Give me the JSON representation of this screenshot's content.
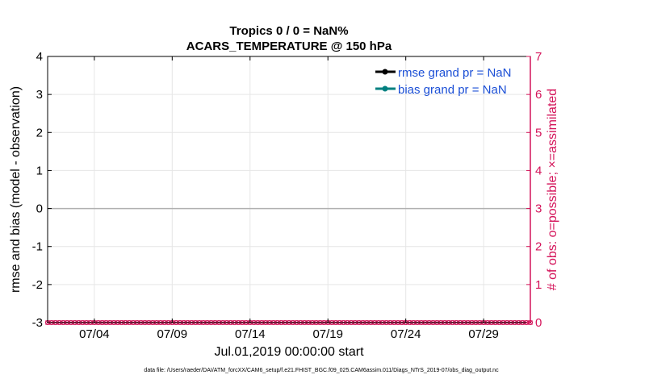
{
  "chart_data": {
    "type": "line",
    "title": [
      "Tropics 0 / 0 = NaN%",
      "ACARS_TEMPERATURE @ 150 hPa"
    ],
    "xlabel": "Jul.01,2019 00:00:00 start",
    "ylabel_left": "rmse and bias (model - observation)",
    "ylabel_right": "# of obs: o=possible; ×=assimilated",
    "x_range_days": [
      0.0,
      31.0
    ],
    "x_ticks": [
      {
        "day": 3,
        "label": "07/04"
      },
      {
        "day": 8,
        "label": "07/09"
      },
      {
        "day": 13,
        "label": "07/14"
      },
      {
        "day": 18,
        "label": "07/19"
      },
      {
        "day": 23,
        "label": "07/24"
      },
      {
        "day": 28,
        "label": "07/29"
      }
    ],
    "ylim_left": [
      -3,
      4
    ],
    "yticks_left": [
      "-3",
      "-2",
      "-1",
      "0",
      "1",
      "2",
      "3",
      "4"
    ],
    "ylim_right": [
      0,
      7
    ],
    "yticks_right": [
      "0",
      "1",
      "2",
      "3",
      "4",
      "5",
      "6",
      "7"
    ],
    "grid": true,
    "zero_line_value": 0,
    "series": [
      {
        "name": "rmse grand pr = NaN",
        "color": "#000000",
        "values": []
      },
      {
        "name": "bias grand pr = NaN",
        "color": "#008080",
        "values": []
      },
      {
        "name": "obs possible",
        "color": "#d4145a",
        "marker": "o",
        "step_days": 0.25,
        "value": 0
      },
      {
        "name": "obs assimilated",
        "color": "#d4145a",
        "marker": "x",
        "step_days": 0.25,
        "value": 0
      }
    ],
    "legend_position": "top-right",
    "legend": [
      "rmse grand pr = NaN",
      "bias grand pr = NaN"
    ]
  },
  "footer": "data file: /Users/raeder/DAI/ATM_forcXX/CAM6_setup/f.e21.FHIST_BGC.f09_025.CAM6assim.011/Diags_NTrS_2019-07/obs_diag_output.nc",
  "colors": {
    "left_axis": "#000000",
    "right_axis": "#d4145a",
    "legend_text": "#1b4fd6",
    "grid": "#e6e6e6"
  }
}
